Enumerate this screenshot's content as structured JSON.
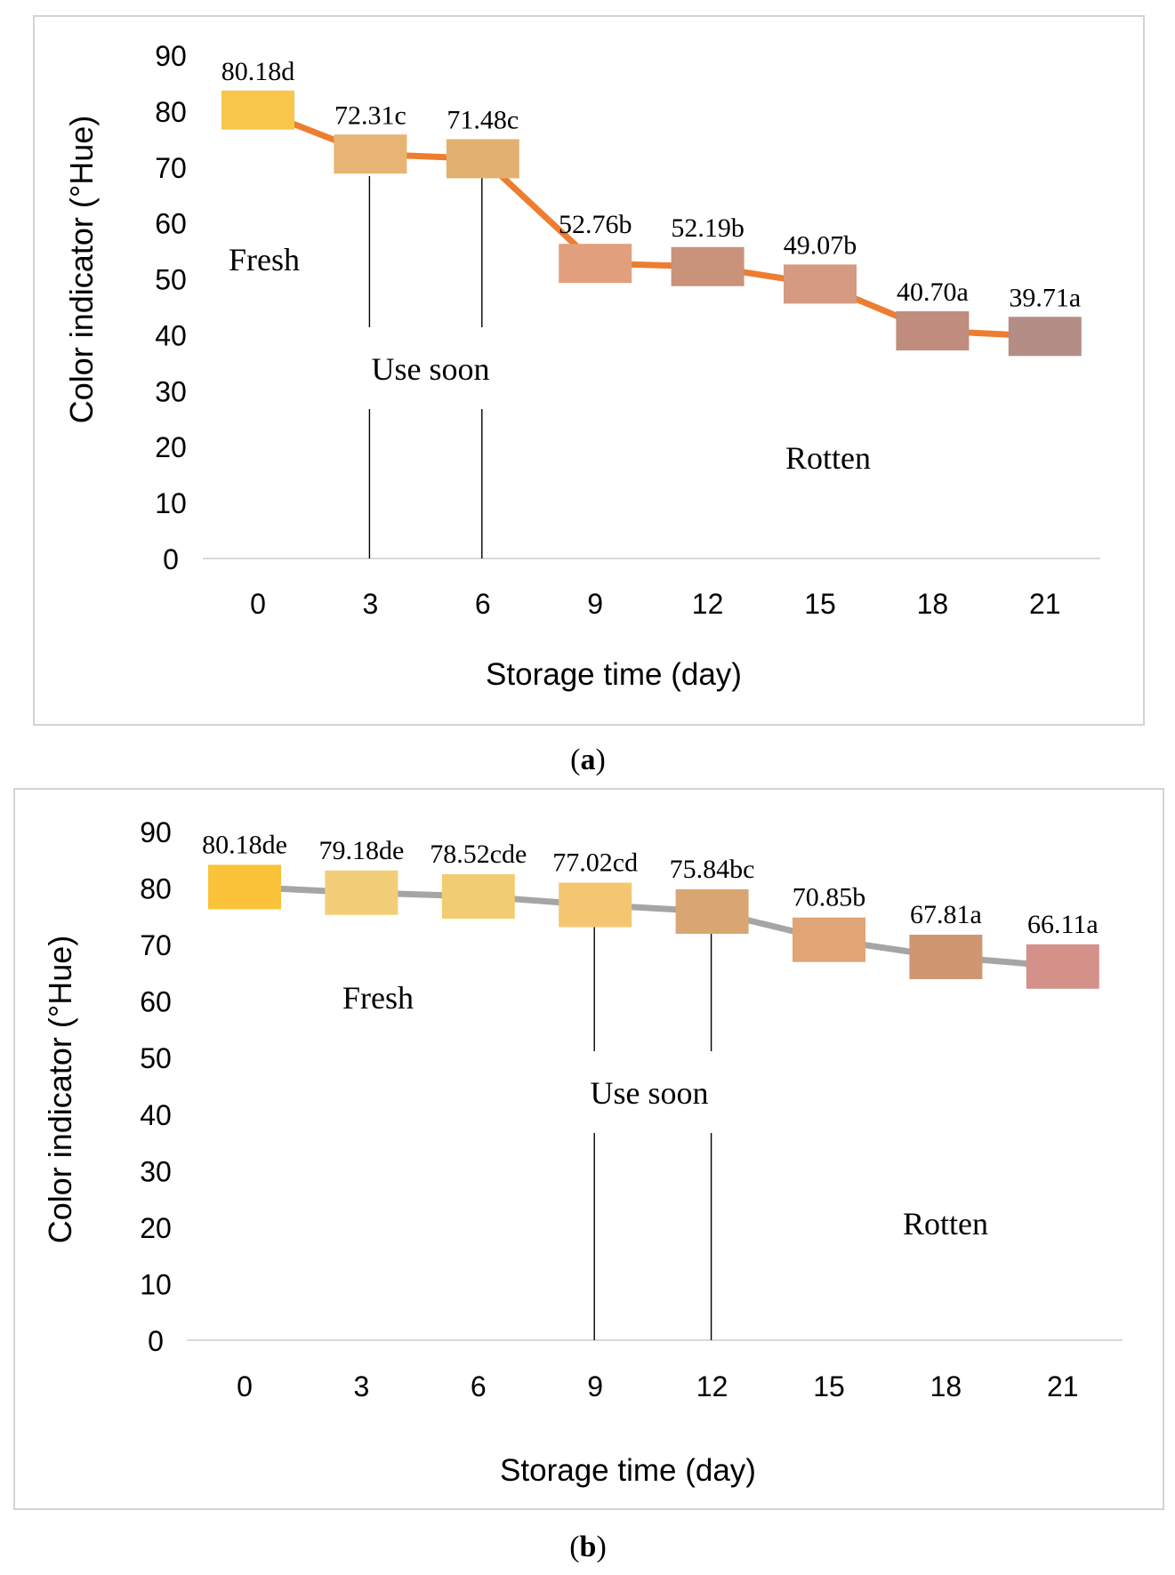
{
  "chart_data": [
    {
      "type": "line",
      "panel_label": "a",
      "xlabel": "Storage time (day)",
      "ylabel": "Color indicator (°Hue)",
      "categories": [
        "0",
        "3",
        "6",
        "9",
        "12",
        "15",
        "18",
        "21"
      ],
      "ylim": [
        0,
        90
      ],
      "yticks": [
        0,
        10,
        20,
        30,
        40,
        50,
        60,
        70,
        80,
        90
      ],
      "grid": false,
      "line_color": "#ED7D31",
      "series": [
        {
          "name": "Color indicator",
          "values": [
            80.18,
            72.31,
            71.48,
            52.76,
            52.19,
            49.07,
            40.7,
            39.71
          ],
          "labels": [
            "80.18d",
            "72.31c",
            "71.48c",
            "52.76b",
            "52.19b",
            "49.07b",
            "40.70a",
            "39.71a"
          ],
          "marker_colors": [
            "#F8C74A",
            "#E8B474",
            "#E2B172",
            "#E29F7D",
            "#C9927A",
            "#D49A82",
            "#C08C7D",
            "#B48E86"
          ]
        }
      ],
      "dividers_after_day": [
        "3",
        "6"
      ],
      "annotations": [
        "Fresh",
        "Use soon",
        "Rotten"
      ]
    },
    {
      "type": "line",
      "panel_label": "b",
      "xlabel": "Storage time (day)",
      "ylabel": "Color indicator (°Hue)",
      "categories": [
        "0",
        "3",
        "6",
        "9",
        "12",
        "15",
        "18",
        "21"
      ],
      "ylim": [
        0,
        90
      ],
      "yticks": [
        0,
        10,
        20,
        30,
        40,
        50,
        60,
        70,
        80,
        90
      ],
      "grid": false,
      "line_color": "#A5A5A5",
      "series": [
        {
          "name": "Color indicator",
          "values": [
            80.18,
            79.18,
            78.52,
            77.02,
            75.84,
            70.85,
            67.81,
            66.11
          ],
          "labels": [
            "80.18de",
            "79.18de",
            "78.52cde",
            "77.02cd",
            "75.84bc",
            "70.85b",
            "67.81a",
            "66.11a"
          ],
          "marker_colors": [
            "#FAC33A",
            "#F2CE78",
            "#F2CC72",
            "#F5C672",
            "#D9A673",
            "#E0A475",
            "#D0966F",
            "#D4918A"
          ]
        }
      ],
      "dividers_after_day": [
        "9",
        "12"
      ],
      "annotations": [
        "Fresh",
        "Use soon",
        "Rotten"
      ]
    }
  ]
}
